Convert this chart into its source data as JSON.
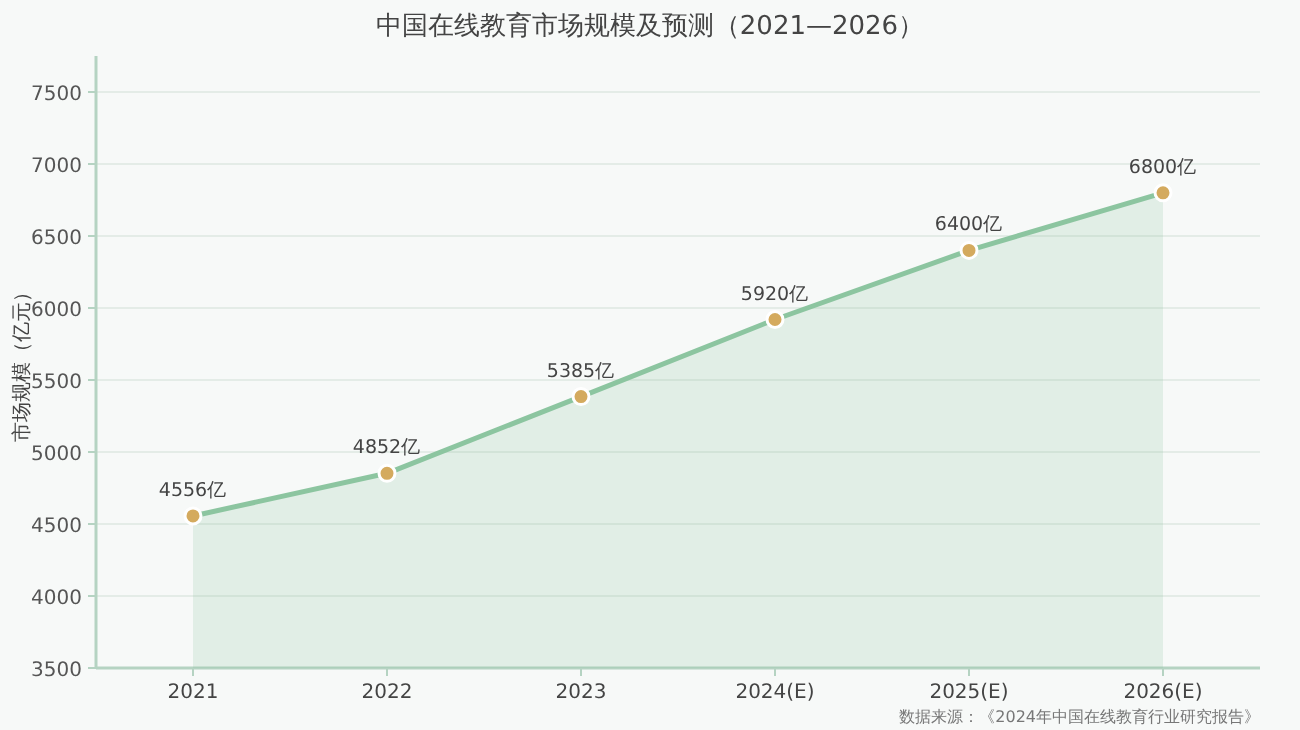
{
  "chart_data": {
    "type": "area",
    "title": "中国在线教育市场规模及预测（2021—2026）",
    "ylabel": "市场规模（亿元）",
    "categories": [
      "2021",
      "2022",
      "2023",
      "2024(E)",
      "2025(E)",
      "2026(E)"
    ],
    "series": [
      {
        "color": "#8cc5a0",
        "values": [
          4556,
          4852,
          5385,
          5920,
          6400,
          6800
        ],
        "value_labels": [
          "4556亿",
          "4852亿",
          "5385亿",
          "5920亿",
          "6400亿",
          "6800亿"
        ]
      }
    ],
    "ylim": [
      3500,
      7750
    ],
    "yticks": [
      3500,
      4000,
      4500,
      5000,
      5500,
      6000,
      6500,
      7000,
      7500
    ],
    "grid": "y",
    "marker": "circle",
    "line_style": "solid",
    "annotations": [
      "数据来源：《2024年中国在线教育行业研究报告》"
    ]
  }
}
